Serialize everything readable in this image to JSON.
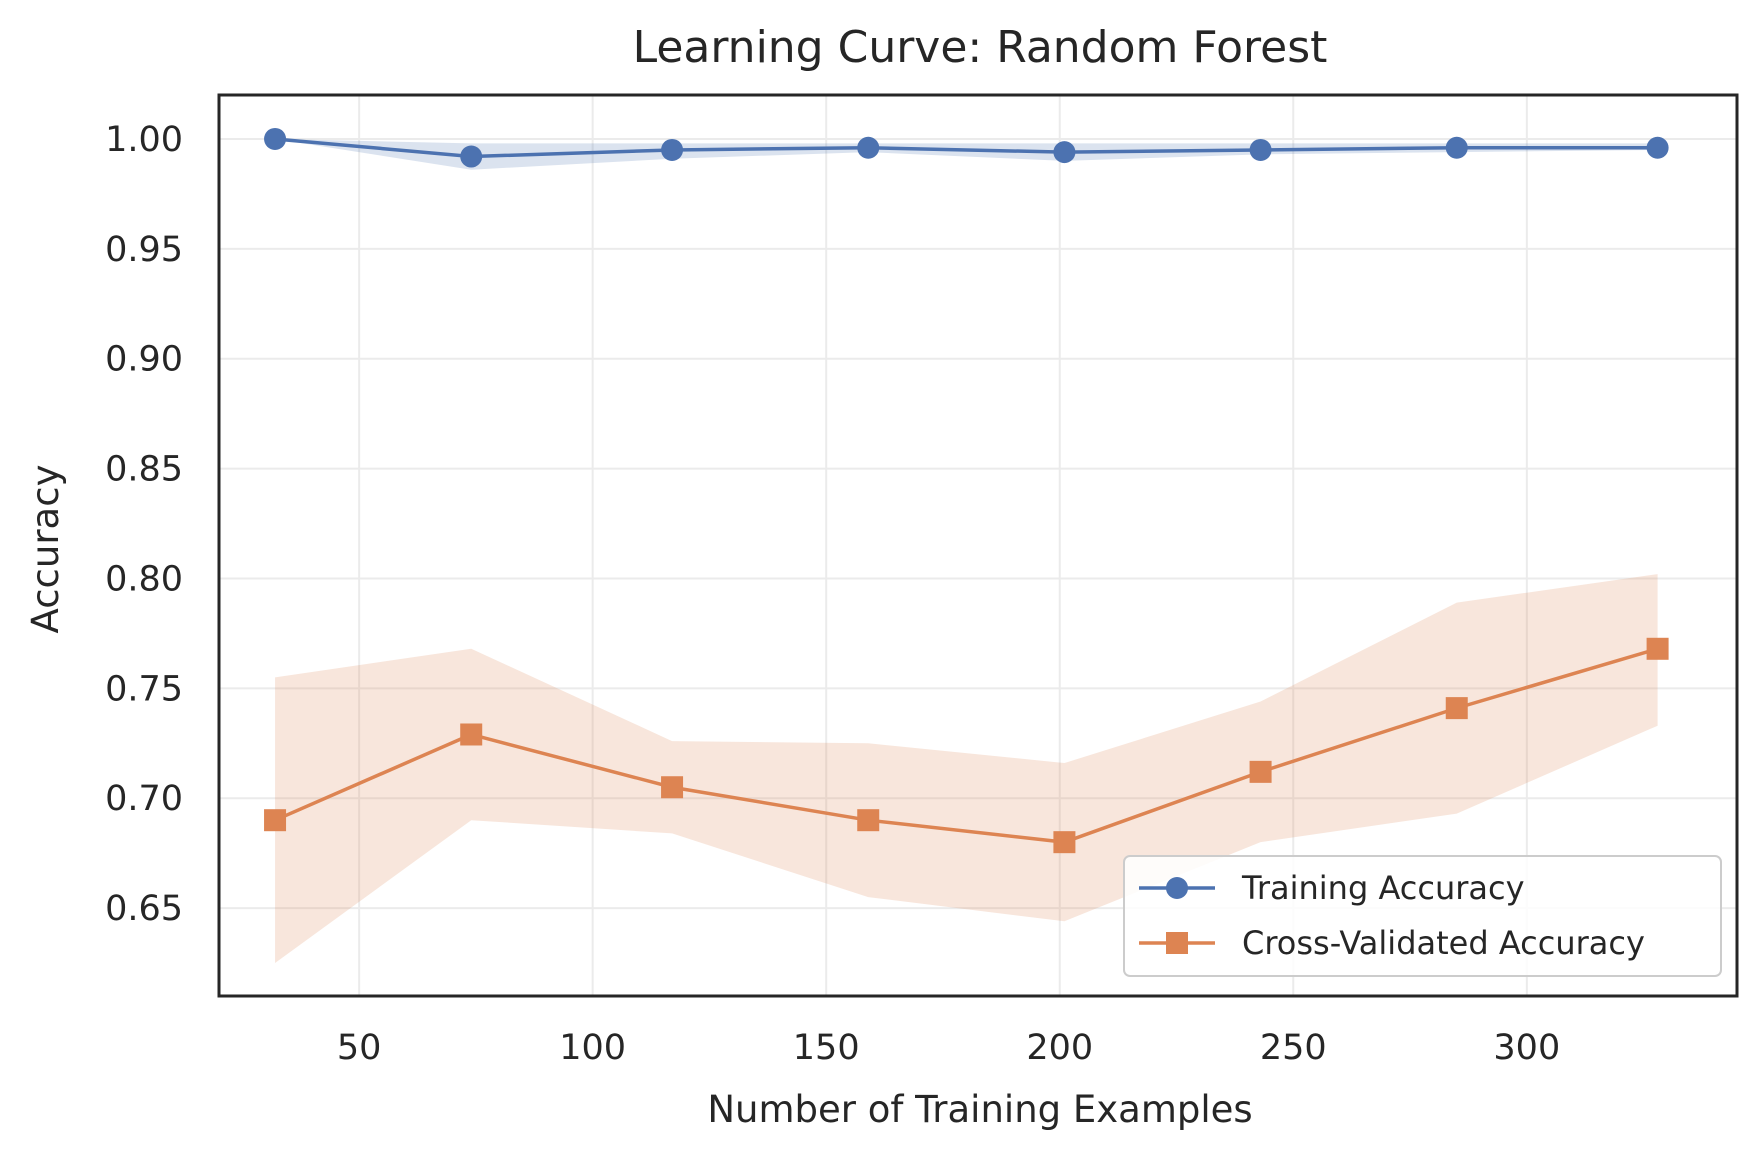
{
  "chart_data": {
    "type": "line",
    "title": "Learning Curve: Random Forest",
    "xlabel": "Number of Training Examples",
    "ylabel": "Accuracy",
    "xlim": [
      20,
      345
    ],
    "ylim": [
      0.61,
      1.02
    ],
    "xticks": [
      50,
      100,
      150,
      200,
      250,
      300
    ],
    "xtick_labels": [
      "50",
      "100",
      "150",
      "200",
      "250",
      "300"
    ],
    "yticks": [
      0.65,
      0.7,
      0.75,
      0.8,
      0.85,
      0.9,
      0.95,
      1.0
    ],
    "ytick_labels": [
      "0.65",
      "0.70",
      "0.75",
      "0.80",
      "0.85",
      "0.90",
      "0.95",
      "1.00"
    ],
    "grid": true,
    "legend_position": "lower-right",
    "x": [
      32,
      74,
      117,
      159,
      201,
      243,
      285,
      328
    ],
    "series": [
      {
        "name": "Training Accuracy",
        "color": "#4c72b0",
        "marker": "circle",
        "values": [
          1.0,
          0.992,
          0.995,
          0.996,
          0.994,
          0.995,
          0.996,
          0.996
        ],
        "band_lower": [
          1.0,
          0.986,
          0.991,
          0.994,
          0.99,
          0.993,
          0.994,
          0.995
        ],
        "band_upper": [
          1.0,
          0.998,
          0.998,
          0.998,
          0.998,
          0.998,
          0.998,
          0.998
        ]
      },
      {
        "name": "Cross-Validated Accuracy",
        "color": "#dd8452",
        "marker": "square",
        "values": [
          0.69,
          0.729,
          0.705,
          0.69,
          0.68,
          0.712,
          0.741,
          0.768
        ],
        "band_lower": [
          0.625,
          0.69,
          0.684,
          0.655,
          0.644,
          0.68,
          0.693,
          0.733
        ],
        "band_upper": [
          0.755,
          0.768,
          0.726,
          0.725,
          0.716,
          0.744,
          0.789,
          0.802
        ]
      }
    ]
  }
}
